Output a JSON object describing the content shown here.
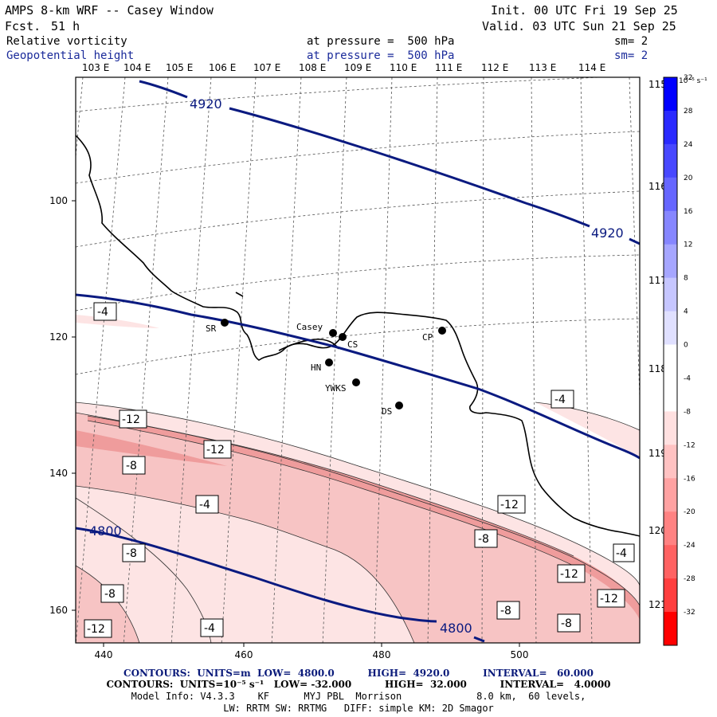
{
  "header": {
    "title": "AMPS 8-km WRF -- Casey Window",
    "forecast_label": "Fcst.",
    "forecast_hours": "51 h",
    "init": "Init. 00 UTC Fri 19 Sep 25",
    "valid": "Valid. 03 UTC Sun 21 Sep 25",
    "field1": "Relative vorticity",
    "field2": "Geopotential height",
    "pressure1": "at pressure =  500 hPa",
    "pressure2": "at pressure =  500 hPa",
    "smooth1": "sm= 2",
    "smooth2": "sm= 2"
  },
  "map": {
    "top_lon_labels": [
      "103 E",
      "104 E",
      "105 E",
      "106 E",
      "107 E",
      "108 E",
      "109 E",
      "110 E",
      "111 E",
      "112 E",
      "113 E",
      "114 E"
    ],
    "right_lon_labels": [
      "115 E",
      "116 E",
      "117 E",
      "118 E",
      "119 E",
      "120 E",
      "121 E"
    ],
    "x_ticks": [
      "440",
      "460",
      "480",
      "500"
    ],
    "y_ticks": [
      "100",
      "120",
      "140",
      "160"
    ],
    "stations": [
      {
        "name": "SR"
      },
      {
        "name": "Casey"
      },
      {
        "name": "CS"
      },
      {
        "name": "CP"
      },
      {
        "name": "HN"
      },
      {
        "name": "YWKS"
      },
      {
        "name": "DS"
      }
    ],
    "height_labels": [
      "4920",
      "4920",
      "4800",
      "4800"
    ],
    "vorticity_labels": [
      "-4",
      "-4",
      "-4",
      "-4",
      "-12",
      "-12",
      "-12",
      "-12",
      "-12",
      "-12",
      "-8",
      "-8",
      "-8",
      "-8",
      "-8",
      "-8"
    ],
    "colors": {
      "height_contour": "#0a1a80",
      "coast": "#000000",
      "shade_light": "#fde4e4",
      "shade_mid": "#f7c4c4",
      "shade_dark": "#ef9c9c"
    }
  },
  "colorbar": {
    "unit": "10⁻⁵ s⁻¹",
    "labels": [
      "32",
      "28",
      "24",
      "20",
      "16",
      "12",
      "8",
      "4",
      "0",
      "-4",
      "-8",
      "-12",
      "-16",
      "-20",
      "-24",
      "-28",
      "-32"
    ],
    "colors": [
      "#0000ff",
      "#2a2aff",
      "#4848ff",
      "#6666ff",
      "#8686ff",
      "#a6a6ff",
      "#c6c6ff",
      "#e0e0ff",
      "#ffffff",
      "#ffffff",
      "#ffe0e0",
      "#ffc2c2",
      "#ffa2a2",
      "#ff8282",
      "#ff6262",
      "#ff3e3e",
      "#ff0000"
    ]
  },
  "footer": {
    "line1": "CONTOURS:  UNITS=m  LOW=  4800.0          HIGH=  4920.0          INTERVAL=   60.000",
    "line2": "CONTOURS:  UNITS=10⁻⁵ s⁻¹   LOW= -32.000          HIGH=  32.000          INTERVAL=   4.0000",
    "line3": "Model Info: V4.3.3    KF      MYJ PBL  Morrison             8.0 km,  60 levels,",
    "line4": "LW: RRTM SW: RRTMG   DIFF: simple KM: 2D Smagor"
  }
}
